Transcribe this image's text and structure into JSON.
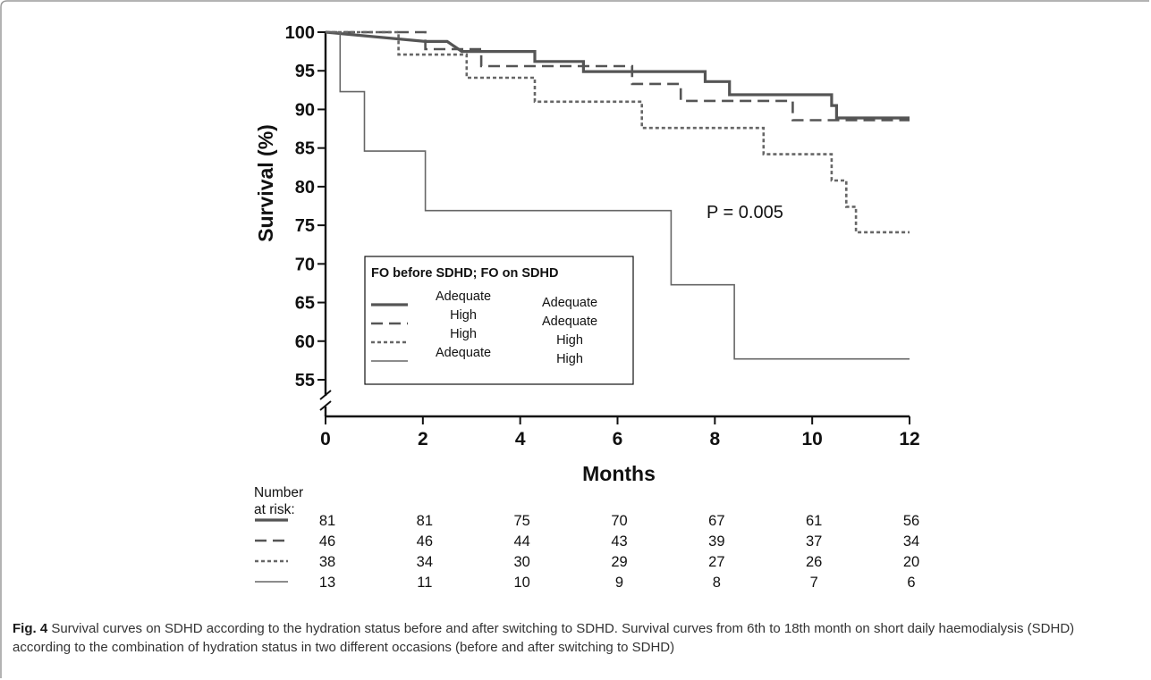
{
  "chart_data": {
    "type": "line",
    "subtype": "kaplan-meier",
    "ylabel": "Survival (%)",
    "xlabel": "Months",
    "xlim": [
      0,
      12
    ],
    "ylim": [
      55,
      100
    ],
    "xticks": [
      "0",
      "2",
      "4",
      "6",
      "8",
      "10",
      "12"
    ],
    "yticks": [
      "55",
      "60",
      "65",
      "70",
      "75",
      "80",
      "85",
      "90",
      "95",
      "100"
    ],
    "y_axis_break": true,
    "annotation": "P = 0.005",
    "legend": {
      "title": "FO before SDHD; FO on SDHD",
      "position": "center-left",
      "entries": [
        {
          "before": "Adequate",
          "on": "Adequate"
        },
        {
          "before": "High",
          "on": "Adequate"
        },
        {
          "before": "High",
          "on": "High"
        },
        {
          "before": "Adequate",
          "on": "High"
        }
      ]
    },
    "series": [
      {
        "style": "solid-thick",
        "color": "#555555",
        "steps": [
          [
            0,
            100
          ],
          [
            2.05,
            98.8
          ],
          [
            2.5,
            98.8
          ],
          [
            2.8,
            97.5
          ],
          [
            4.3,
            97.5
          ],
          [
            4.3,
            96.2
          ],
          [
            5.3,
            96.2
          ],
          [
            5.3,
            94.9
          ],
          [
            7.8,
            94.9
          ],
          [
            7.8,
            93.6
          ],
          [
            8.3,
            93.6
          ],
          [
            8.3,
            91.9
          ],
          [
            10.4,
            91.9
          ],
          [
            10.4,
            90.5
          ],
          [
            10.5,
            90.5
          ],
          [
            10.5,
            88.9
          ],
          [
            12,
            88.9
          ]
        ]
      },
      {
        "style": "dashed",
        "color": "#555555",
        "steps": [
          [
            0,
            100
          ],
          [
            2.05,
            100
          ],
          [
            2.05,
            97.8
          ],
          [
            3.2,
            97.8
          ],
          [
            3.2,
            95.6
          ],
          [
            6.3,
            95.6
          ],
          [
            6.3,
            93.3
          ],
          [
            7.3,
            93.3
          ],
          [
            7.3,
            91.1
          ],
          [
            9.6,
            91.1
          ],
          [
            9.6,
            88.6
          ],
          [
            12,
            88.6
          ]
        ]
      },
      {
        "style": "dotted",
        "color": "#666666",
        "steps": [
          [
            0,
            100
          ],
          [
            1.5,
            100
          ],
          [
            1.5,
            97.1
          ],
          [
            2.9,
            97.1
          ],
          [
            2.9,
            94.1
          ],
          [
            4.3,
            94.1
          ],
          [
            4.3,
            91.0
          ],
          [
            6.5,
            91.0
          ],
          [
            6.5,
            87.6
          ],
          [
            9,
            87.6
          ],
          [
            9,
            84.2
          ],
          [
            10.4,
            84.2
          ],
          [
            10.4,
            80.8
          ],
          [
            10.7,
            80.8
          ],
          [
            10.7,
            77.4
          ],
          [
            10.9,
            77.4
          ],
          [
            10.9,
            74.1
          ],
          [
            12,
            74.1
          ]
        ]
      },
      {
        "style": "solid-thin",
        "color": "#666666",
        "steps": [
          [
            0,
            100
          ],
          [
            0.3,
            100
          ],
          [
            0.3,
            92.3
          ],
          [
            0.8,
            92.3
          ],
          [
            0.8,
            84.6
          ],
          [
            2.05,
            84.6
          ],
          [
            2.05,
            76.9
          ],
          [
            7.1,
            76.9
          ],
          [
            7.1,
            67.3
          ],
          [
            8.4,
            67.3
          ],
          [
            8.4,
            57.7
          ],
          [
            12,
            57.7
          ]
        ]
      }
    ],
    "risk_table": {
      "title": "Number at risk:",
      "times": [
        0,
        2,
        4,
        6,
        8,
        10,
        12
      ],
      "rows": [
        {
          "style": "solid-thick",
          "values": [
            "81",
            "81",
            "75",
            "70",
            "67",
            "61",
            "56"
          ]
        },
        {
          "style": "dashed",
          "values": [
            "46",
            "46",
            "44",
            "43",
            "39",
            "37",
            "34"
          ]
        },
        {
          "style": "dotted",
          "values": [
            "38",
            "34",
            "30",
            "29",
            "27",
            "26",
            "20"
          ]
        },
        {
          "style": "solid-thin",
          "values": [
            "13",
            "11",
            "10",
            "9",
            "8",
            "7",
            "6"
          ]
        }
      ]
    }
  },
  "caption": {
    "label": "Fig. 4",
    "text": " Survival curves on SDHD according to the hydration status before and after switching to SDHD. Survival curves from 6th to 18th month on short daily haemodialysis (SDHD) according to the combination of hydration status in two different occasions (before and after switching to SDHD)"
  },
  "colors": {
    "frame": "#9a9a9a",
    "axis": "#111111"
  }
}
